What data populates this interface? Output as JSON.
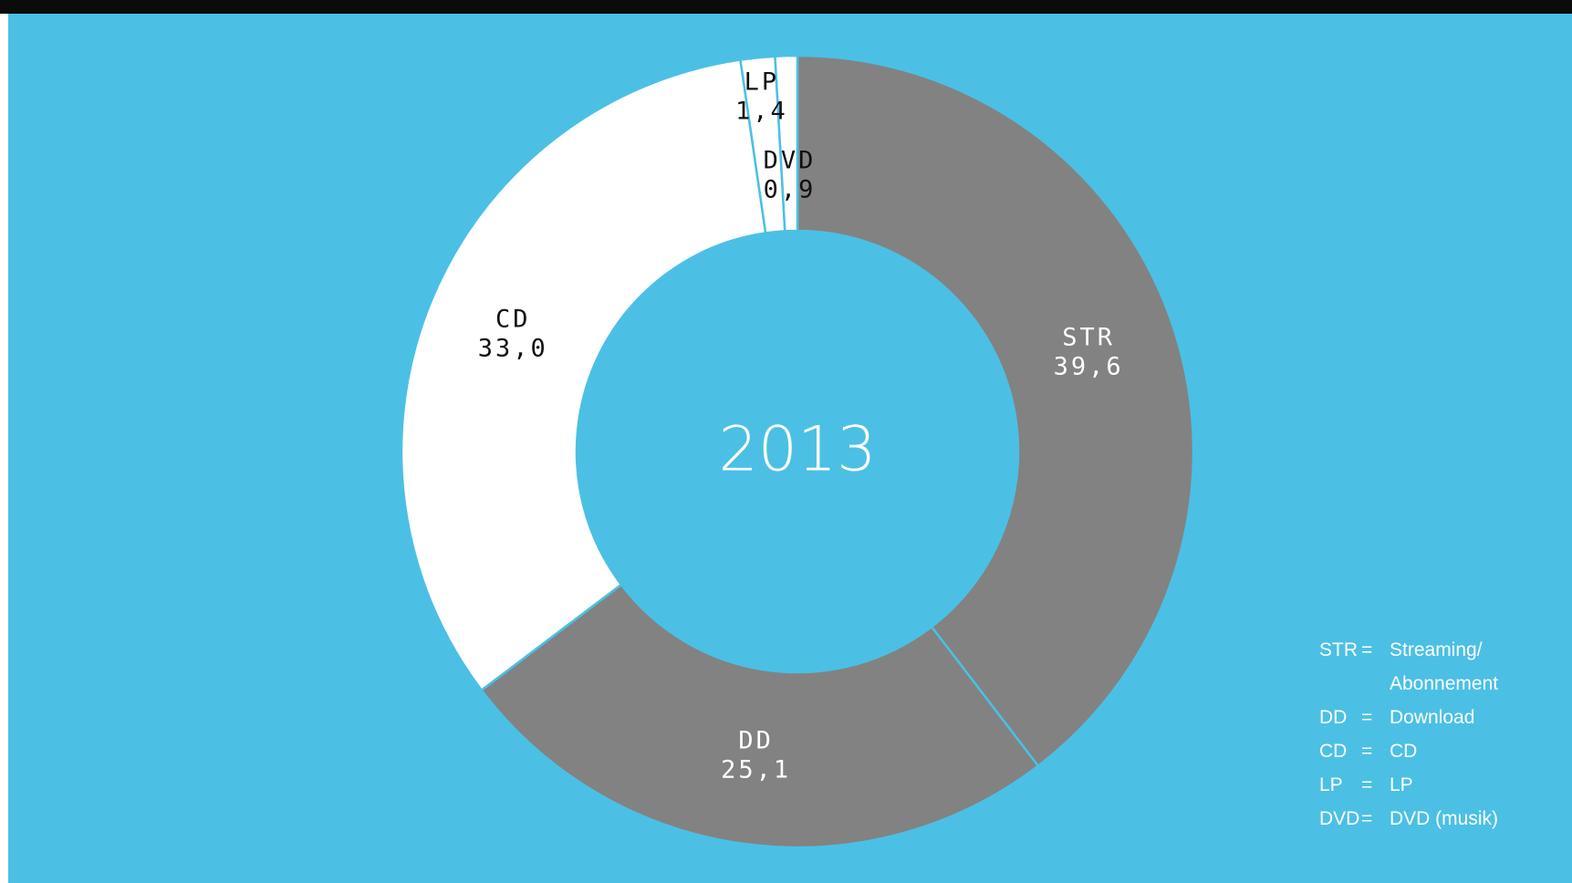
{
  "chart_data": {
    "type": "donut",
    "center_label": "2013",
    "categories": [
      "STR",
      "DD",
      "CD",
      "LP",
      "DVD"
    ],
    "values": [
      39.6,
      25.1,
      33.0,
      1.4,
      0.9
    ],
    "value_labels": [
      "39,6",
      "25,1",
      "33,0",
      "1,4",
      "0,9"
    ],
    "colors": [
      "#828282",
      "#828282",
      "#ffffff",
      "#ffffff",
      "#ffffff"
    ],
    "legend": {
      "separator": "=",
      "items": [
        {
          "abbr": "STR",
          "name": "Streaming/ Abonnement"
        },
        {
          "abbr": "DD",
          "name": "Download"
        },
        {
          "abbr": "CD",
          "name": "CD"
        },
        {
          "abbr": "LP",
          "name": "LP"
        },
        {
          "abbr": "DVD",
          "name": "DVD (musik)"
        }
      ]
    }
  }
}
